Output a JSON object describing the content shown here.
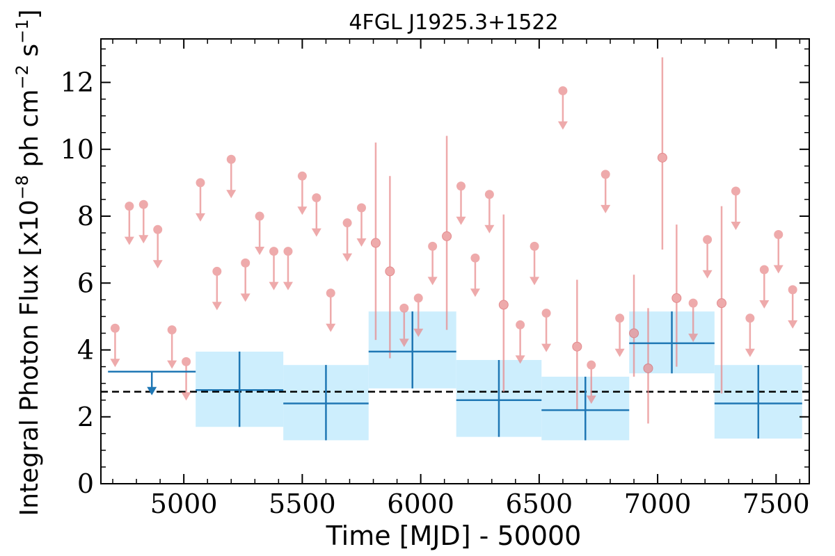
{
  "chart_data": {
    "type": "scatter",
    "title": "4FGL J1925.3+1522",
    "xlabel": "Time [MJD] - 50000",
    "ylabel": "Integral Photon Flux [x10^-8 ph cm^-2 s^-1]",
    "ylabel_parts": {
      "base": "Integral Photon Flux [x10",
      "exp1": "−8",
      "mid": " ph cm",
      "exp2": "−2",
      "mid2": " s",
      "exp3": "−1",
      "end": "]"
    },
    "xlim": [
      4650,
      7640
    ],
    "ylim": [
      0,
      13.3
    ],
    "xticks": [
      5000,
      5500,
      6000,
      6500,
      7000,
      7500
    ],
    "yticks": [
      0,
      2,
      4,
      6,
      8,
      10,
      12
    ],
    "reference_level": 2.75,
    "colors": {
      "bins": "#1f77b4",
      "band": "#cdeefd",
      "monthly": "#e88a8c",
      "reference": "#000000"
    },
    "binned_series": {
      "upper_limits": [
        {
          "x_start": 4680,
          "x_end": 5050,
          "x": 4865,
          "ul": 3.35
        }
      ],
      "detections": [
        {
          "x_start": 5050,
          "x_end": 5420,
          "x": 5235,
          "y": 2.8,
          "yerr_low": 1.1,
          "yerr_high": 1.15
        },
        {
          "x_start": 5420,
          "x_end": 5780,
          "x": 5600,
          "y": 2.4,
          "yerr_low": 1.1,
          "yerr_high": 1.15
        },
        {
          "x_start": 5780,
          "x_end": 6150,
          "x": 5965,
          "y": 3.95,
          "yerr_low": 1.1,
          "yerr_high": 1.2
        },
        {
          "x_start": 6150,
          "x_end": 6510,
          "x": 6330,
          "y": 2.5,
          "yerr_low": 1.1,
          "yerr_high": 1.2
        },
        {
          "x_start": 6510,
          "x_end": 6880,
          "x": 6695,
          "y": 2.2,
          "yerr_low": 0.9,
          "yerr_high": 1.0
        },
        {
          "x_start": 6880,
          "x_end": 7240,
          "x": 7060,
          "y": 4.2,
          "yerr_low": 0.9,
          "yerr_high": 0.95
        },
        {
          "x_start": 7240,
          "x_end": 7610,
          "x": 7425,
          "y": 2.4,
          "yerr_low": 1.05,
          "yerr_high": 1.15
        }
      ]
    },
    "monthly_series": {
      "upper_limits": [
        {
          "x": 4710,
          "ul": 4.65
        },
        {
          "x": 4770,
          "ul": 8.3
        },
        {
          "x": 4830,
          "ul": 8.35
        },
        {
          "x": 4890,
          "ul": 7.6
        },
        {
          "x": 4950,
          "ul": 4.6
        },
        {
          "x": 5010,
          "ul": 3.65
        },
        {
          "x": 5070,
          "ul": 9.0
        },
        {
          "x": 5140,
          "ul": 6.35
        },
        {
          "x": 5200,
          "ul": 9.7
        },
        {
          "x": 5260,
          "ul": 6.6
        },
        {
          "x": 5320,
          "ul": 8.0
        },
        {
          "x": 5380,
          "ul": 6.95
        },
        {
          "x": 5440,
          "ul": 6.95
        },
        {
          "x": 5500,
          "ul": 9.2
        },
        {
          "x": 5560,
          "ul": 8.55
        },
        {
          "x": 5620,
          "ul": 5.7
        },
        {
          "x": 5690,
          "ul": 7.8
        },
        {
          "x": 5750,
          "ul": 8.25
        },
        {
          "x": 5930,
          "ul": 5.25
        },
        {
          "x": 5990,
          "ul": 5.55
        },
        {
          "x": 6050,
          "ul": 7.1
        },
        {
          "x": 6170,
          "ul": 8.9
        },
        {
          "x": 6230,
          "ul": 6.75
        },
        {
          "x": 6290,
          "ul": 8.65
        },
        {
          "x": 6420,
          "ul": 4.75
        },
        {
          "x": 6480,
          "ul": 7.1
        },
        {
          "x": 6530,
          "ul": 5.1
        },
        {
          "x": 6600,
          "ul": 11.75
        },
        {
          "x": 6720,
          "ul": 3.55
        },
        {
          "x": 6780,
          "ul": 9.25
        },
        {
          "x": 6840,
          "ul": 4.95
        },
        {
          "x": 7150,
          "ul": 5.4
        },
        {
          "x": 7210,
          "ul": 7.3
        },
        {
          "x": 7330,
          "ul": 8.75
        },
        {
          "x": 7390,
          "ul": 4.95
        },
        {
          "x": 7450,
          "ul": 6.4
        },
        {
          "x": 7510,
          "ul": 7.45
        },
        {
          "x": 7570,
          "ul": 5.8
        }
      ],
      "detections": [
        {
          "x": 5810,
          "y": 7.2,
          "yerr_low": 2.9,
          "yerr_high": 3.0
        },
        {
          "x": 5870,
          "y": 6.35,
          "yerr_low": 2.6,
          "yerr_high": 2.85
        },
        {
          "x": 6110,
          "y": 7.4,
          "yerr_low": 2.8,
          "yerr_high": 3.0
        },
        {
          "x": 6350,
          "y": 5.35,
          "yerr_low": 2.6,
          "yerr_high": 2.7
        },
        {
          "x": 6660,
          "y": 4.1,
          "yerr_low": 1.9,
          "yerr_high": 2.0
        },
        {
          "x": 6900,
          "y": 4.5,
          "yerr_low": 1.3,
          "yerr_high": 1.75
        },
        {
          "x": 6960,
          "y": 3.45,
          "yerr_low": 1.65,
          "yerr_high": 1.8
        },
        {
          "x": 7020,
          "y": 9.75,
          "yerr_low": 2.75,
          "yerr_high": 3.0
        },
        {
          "x": 7080,
          "y": 5.55,
          "yerr_low": 2.05,
          "yerr_high": 2.2
        },
        {
          "x": 7270,
          "y": 5.4,
          "yerr_low": 2.7,
          "yerr_high": 2.9
        }
      ]
    }
  }
}
